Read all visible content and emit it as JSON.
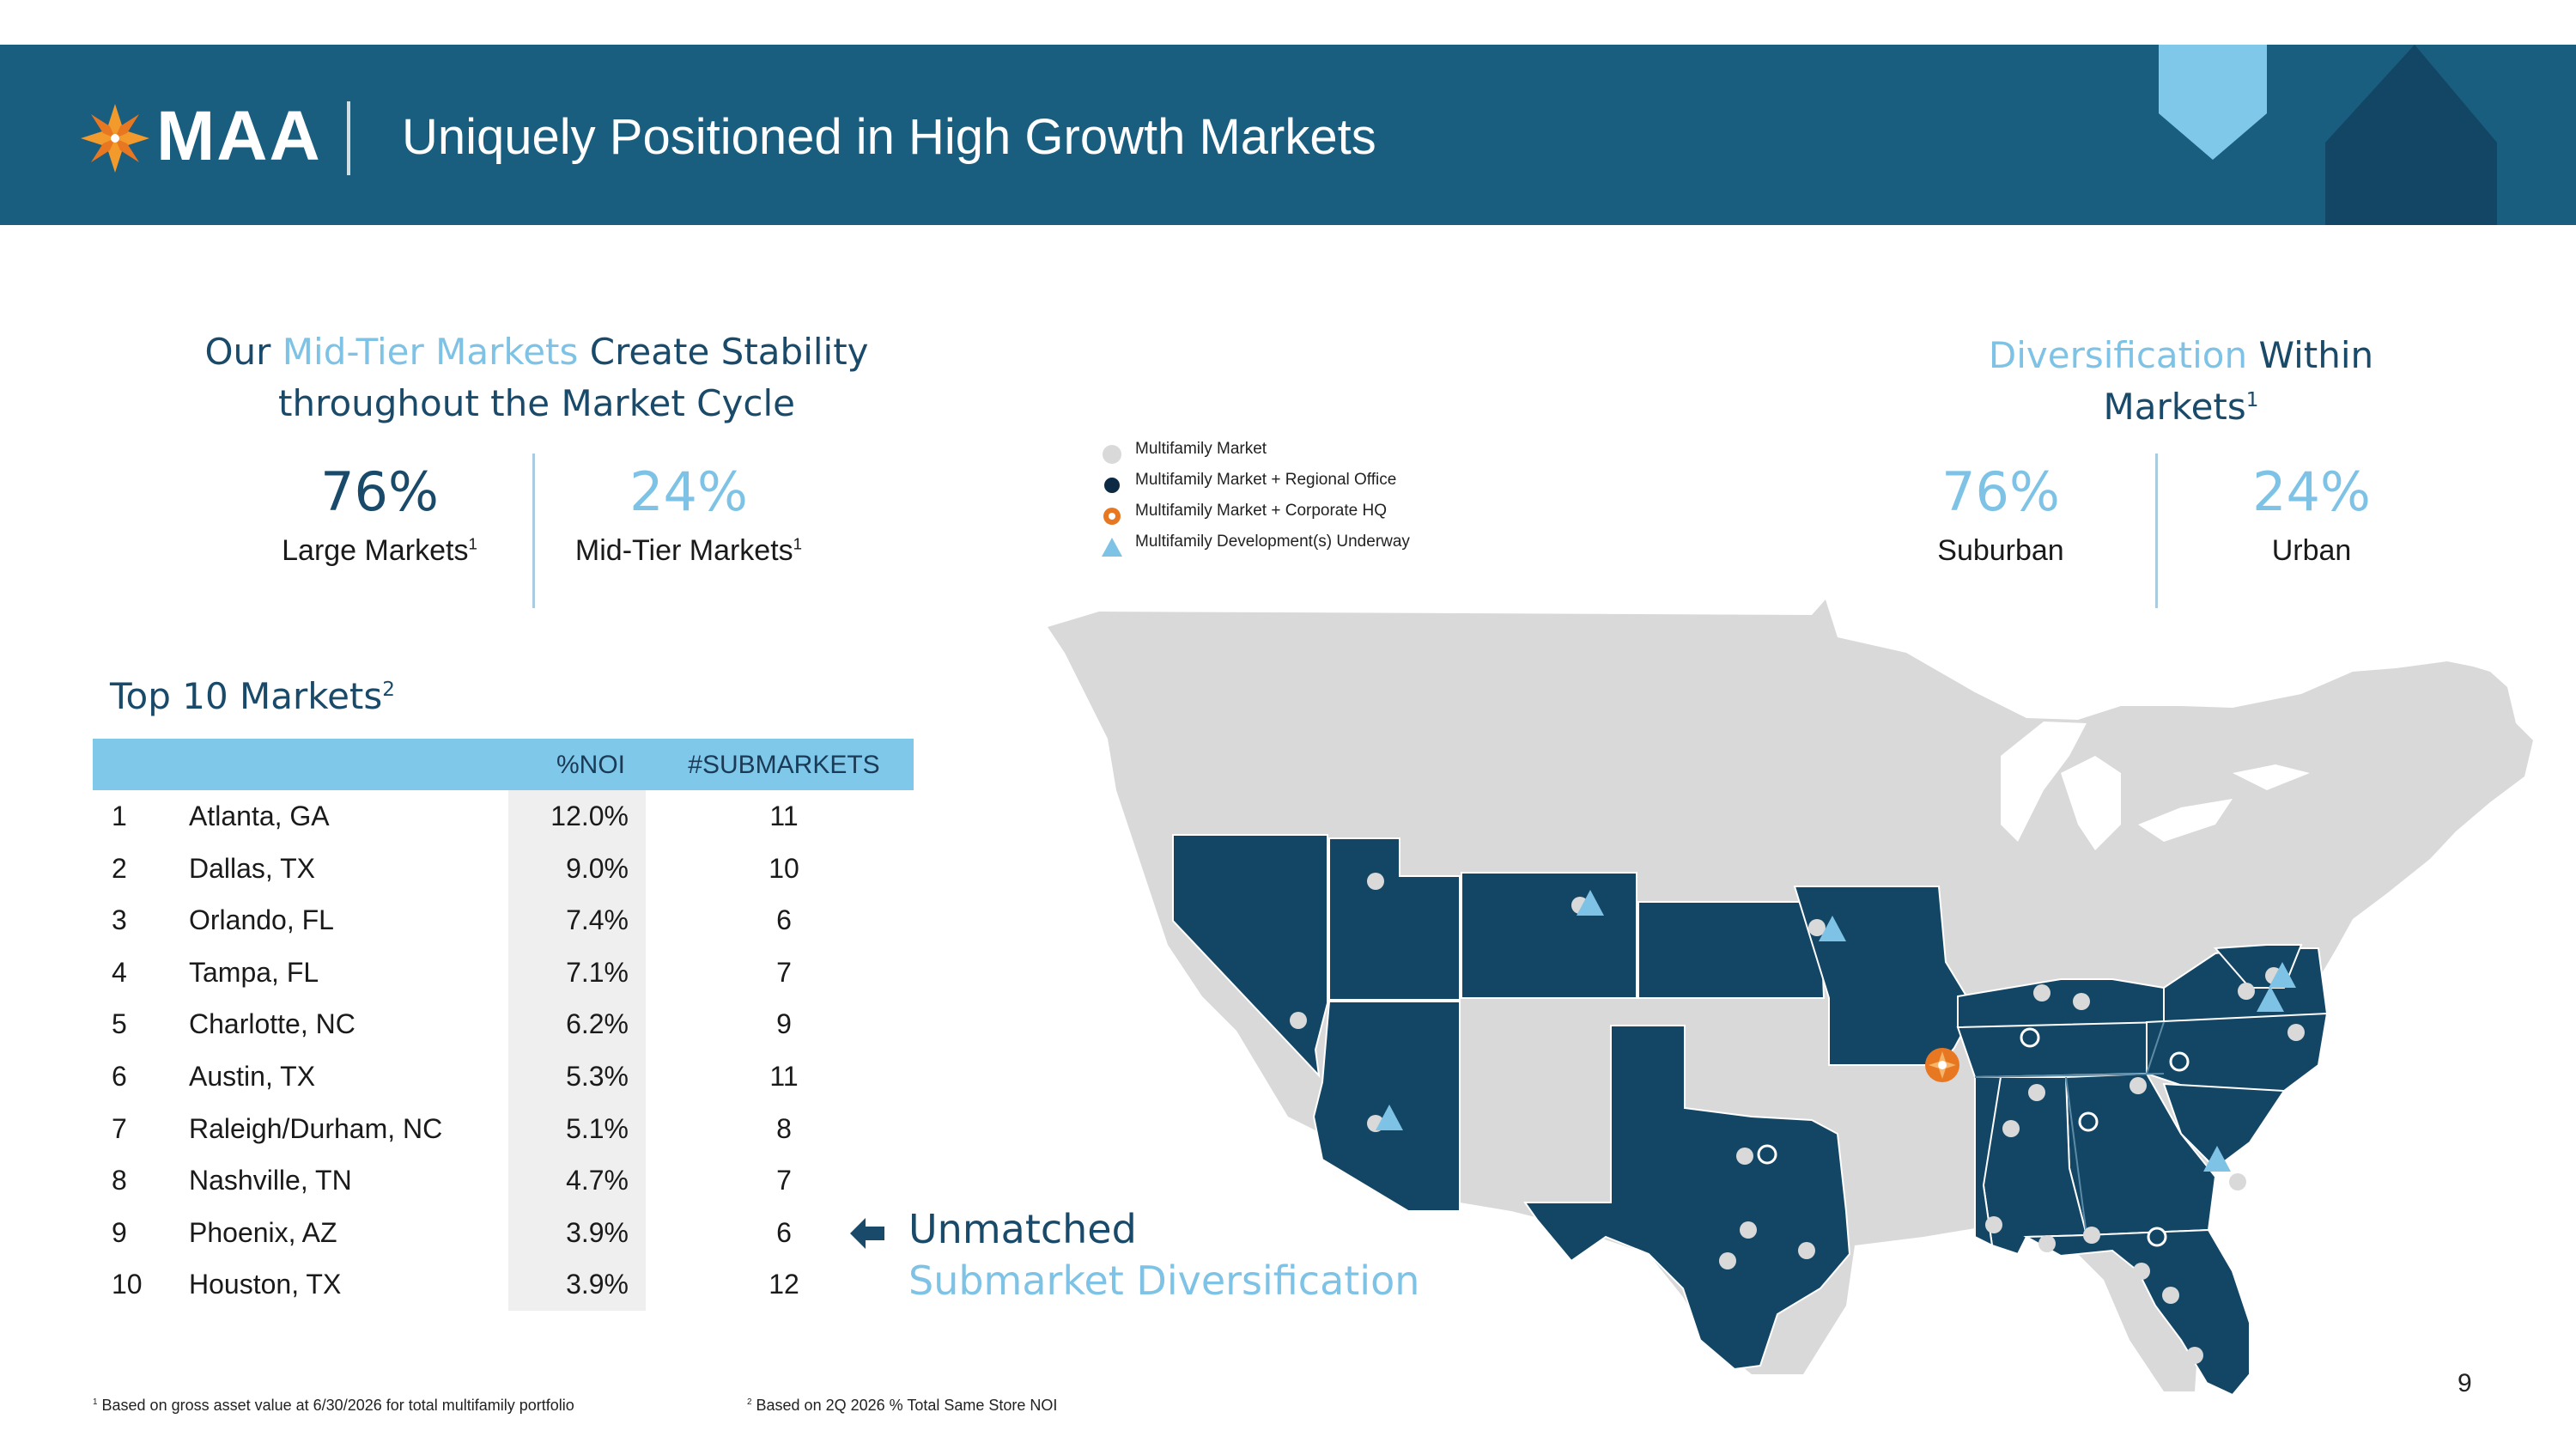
{
  "header": {
    "brand": "MAA",
    "title": "Uniquely Positioned in High Growth Markets"
  },
  "left_heading": {
    "part1": "Our",
    "accent": "Mid-Tier Markets",
    "part2": "Create Stability",
    "line2": "throughout the Market Cycle"
  },
  "left_stats": [
    {
      "value": "76%",
      "label": "Large Markets",
      "footnote": "1"
    },
    {
      "value": "24%",
      "label": "Mid-Tier Markets",
      "footnote": "1"
    }
  ],
  "right_heading": {
    "accent": "Diversification",
    "part1": "Within",
    "line2": "Markets",
    "footnote": "1"
  },
  "right_stats": [
    {
      "value": "76%",
      "label": "Suburban"
    },
    {
      "value": "24%",
      "label": "Urban"
    }
  ],
  "legend": [
    {
      "label": "Multifamily Market",
      "icon": "gray-dot-icon"
    },
    {
      "label": "Multifamily Market + Regional Office",
      "icon": "navy-dot-icon"
    },
    {
      "label": "Multifamily Market + Corporate HQ",
      "icon": "orange-star-icon"
    },
    {
      "label": "Multifamily Development(s) Underway",
      "icon": "blue-triangle-icon"
    }
  ],
  "top10": {
    "title": "Top 10 Markets",
    "footnote": "2",
    "columns": [
      "%NOI",
      "#SUBMARKETS"
    ],
    "rows": [
      {
        "rank": "1",
        "city": "Atlanta, GA",
        "noi": "12.0%",
        "submarkets": "11"
      },
      {
        "rank": "2",
        "city": "Dallas, TX",
        "noi": "9.0%",
        "submarkets": "10"
      },
      {
        "rank": "3",
        "city": "Orlando, FL",
        "noi": "7.4%",
        "submarkets": "6"
      },
      {
        "rank": "4",
        "city": "Tampa, FL",
        "noi": "7.1%",
        "submarkets": "7"
      },
      {
        "rank": "5",
        "city": "Charlotte, NC",
        "noi": "6.2%",
        "submarkets": "9"
      },
      {
        "rank": "6",
        "city": "Austin, TX",
        "noi": "5.3%",
        "submarkets": "11"
      },
      {
        "rank": "7",
        "city": "Raleigh/Durham, NC",
        "noi": "5.1%",
        "submarkets": "8"
      },
      {
        "rank": "8",
        "city": "Nashville, TN",
        "noi": "4.7%",
        "submarkets": "7"
      },
      {
        "rank": "9",
        "city": "Phoenix, AZ",
        "noi": "3.9%",
        "submarkets": "6"
      },
      {
        "rank": "10",
        "city": "Houston, TX",
        "noi": "3.9%",
        "submarkets": "12"
      }
    ]
  },
  "unmatched": {
    "line1": "Unmatched",
    "line2": "Submarket Diversification"
  },
  "footnotes": [
    {
      "mark": "1",
      "text": "Based on gross asset value at 6/30/2026 for total multifamily portfolio"
    },
    {
      "mark": "2",
      "text": "Based on 2Q 2026 % Total Same Store NOI"
    }
  ],
  "page_number": "9",
  "colors": {
    "navy": "#1a5e7f",
    "dark_navy": "#124664",
    "accent_blue": "#7ec3e6",
    "map_gray": "#d9d9d9",
    "hq_orange": "#e87722"
  }
}
